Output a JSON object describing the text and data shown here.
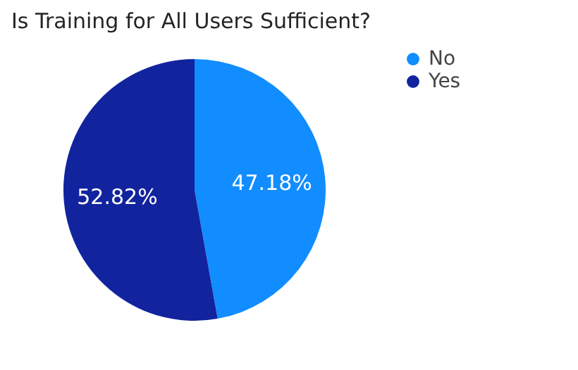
{
  "chart_data": {
    "type": "pie",
    "title": "Is Training for All Users Sufficient?",
    "categories": [
      "No",
      "Yes"
    ],
    "values": [
      47.18,
      52.82
    ],
    "colors": [
      "#118dff",
      "#12239e"
    ],
    "value_labels": [
      "47.18%",
      "52.82%"
    ],
    "legend": "right"
  }
}
